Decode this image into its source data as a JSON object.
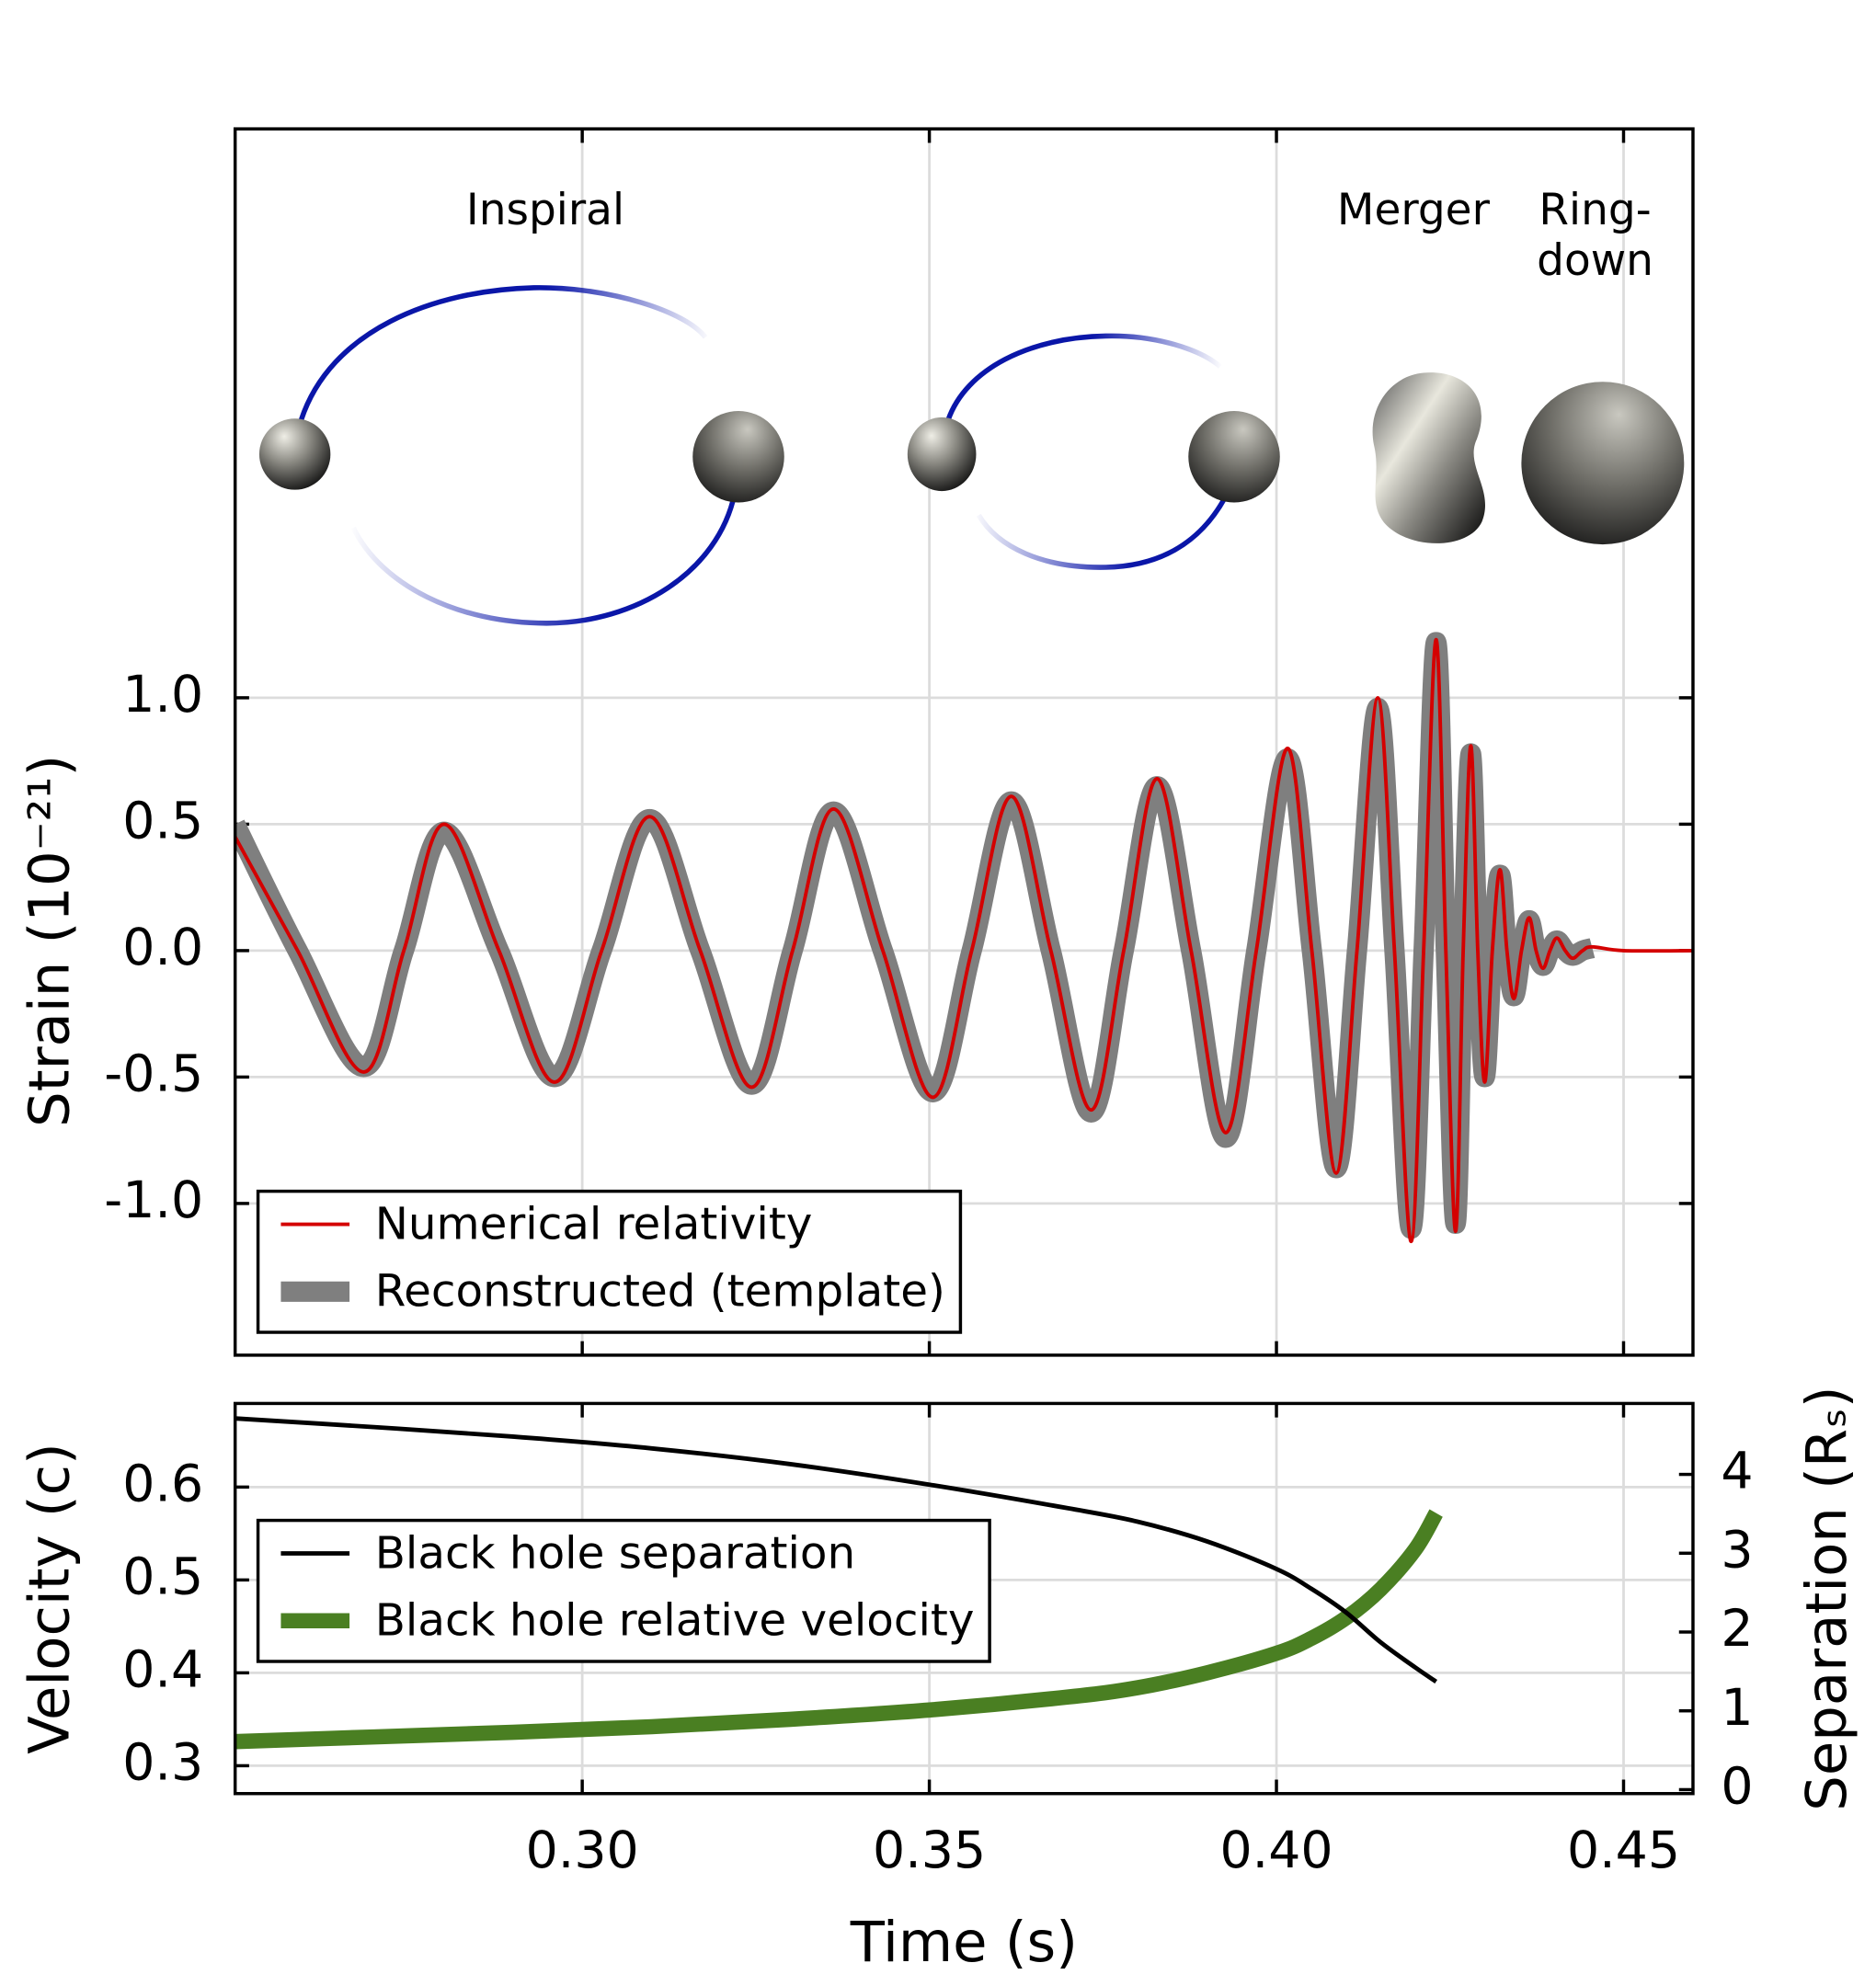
{
  "chart_data": [
    {
      "type": "line",
      "ylabel": "Strain (10⁻²¹)",
      "annotations": [
        "Inspiral",
        "Merger",
        [
          "Ring-",
          "down"
        ]
      ],
      "xlim": [
        0.25,
        0.46
      ],
      "ylim": [
        -1.6,
        3.25
      ],
      "yticks": [
        {
          "value": 1,
          "label": "1.0"
        },
        0.5,
        {
          "value": 0,
          "label": "0.0"
        },
        -0.5,
        {
          "value": -1,
          "label": "-1.0"
        }
      ],
      "grid": true,
      "legend": "lower left",
      "x": [
        0.25,
        0.259,
        0.2685,
        0.2743,
        0.2801,
        0.288,
        0.296,
        0.3028,
        0.3097,
        0.317,
        0.3244,
        0.3303,
        0.3362,
        0.3433,
        0.3505,
        0.3561,
        0.3618,
        0.3675,
        0.3733,
        0.378,
        0.3828,
        0.3877,
        0.3927,
        0.3971,
        0.4016,
        0.4051,
        0.4086,
        0.4116,
        0.4146,
        0.417,
        0.4194,
        0.4212,
        0.423,
        0.4244,
        0.4258,
        0.4269,
        0.428,
        0.429,
        0.43,
        0.4311,
        0.4322,
        0.4332,
        0.4342,
        0.4353,
        0.4364,
        0.4374,
        0.4384,
        0.4394,
        0.4404,
        0.4416,
        0.4427,
        0.4441,
        0.4455,
        0.45,
        0.46
      ],
      "series": [
        {
          "name": "Numerical relativity",
          "color": "#d40000",
          "linewidth": 2.8,
          "values": [
            0.45,
            0,
            -0.48,
            0,
            0.5,
            0,
            -0.52,
            0,
            0.53,
            0,
            -0.54,
            0,
            0.56,
            0,
            -0.58,
            0,
            0.61,
            0,
            -0.63,
            0,
            0.68,
            0,
            -0.72,
            0,
            0.8,
            0,
            -0.88,
            0,
            1.0,
            0,
            -1.15,
            0,
            1.23,
            0,
            -1.11,
            0,
            0.81,
            0,
            -0.52,
            0,
            0.32,
            0,
            -0.19,
            0,
            0.13,
            0,
            -0.07,
            0,
            0.05,
            0,
            -0.03,
            0,
            0.015,
            0,
            0
          ]
        },
        {
          "name": "Reconstructed (template)",
          "color": "#7f7f7f",
          "linewidth": 16,
          "values": [
            0.5,
            0,
            -0.46,
            0,
            0.47,
            0,
            -0.5,
            0,
            0.52,
            0,
            -0.53,
            0,
            0.55,
            0,
            -0.56,
            0,
            0.59,
            0,
            -0.64,
            0,
            0.65,
            0,
            -0.74,
            0,
            0.76,
            0,
            -0.86,
            0,
            0.96,
            0,
            -1.1,
            0,
            1.22,
            0,
            -1.08,
            0,
            0.78,
            0,
            -0.5,
            0,
            0.3,
            0,
            -0.18,
            0,
            0.12,
            0,
            -0.06,
            0,
            0.04,
            0,
            -0.02,
            0,
            0.01,
            null,
            null
          ]
        }
      ]
    },
    {
      "type": "line",
      "xlabel": "Time (s)",
      "ylabel": "Velocity (c)",
      "y2label": "Separation (Rₛ)",
      "xlim": [
        0.25,
        0.46
      ],
      "ylim": [
        0.27,
        0.69
      ],
      "y2lim": [
        -0.05,
        4.9
      ],
      "xticks": [
        {
          "value": 0.3,
          "label": "0.30"
        },
        0.35,
        {
          "value": 0.4,
          "label": "0.40"
        },
        0.45
      ],
      "yticks": [
        0.6,
        0.5,
        0.4,
        0.3
      ],
      "y2ticks": [
        4,
        3,
        2,
        1,
        0
      ],
      "grid": true,
      "legend": "center left",
      "x": [
        0.25,
        0.27,
        0.29,
        0.31,
        0.33,
        0.35,
        0.37,
        0.38,
        0.39,
        0.4,
        0.405,
        0.41,
        0.415,
        0.42,
        0.423
      ],
      "series": [
        {
          "name": "Black hole separation",
          "color": "#000000",
          "linewidth": 3.5,
          "axis": "y2",
          "values": [
            4.71,
            4.6,
            4.48,
            4.33,
            4.13,
            3.87,
            3.57,
            3.4,
            3.15,
            2.8,
            2.55,
            2.25,
            1.87,
            1.55,
            1.37
          ]
        },
        {
          "name": "Black hole relative velocity",
          "color": "#4a7f22",
          "linewidth": 12,
          "values": [
            0.326,
            0.331,
            0.336,
            0.342,
            0.35,
            0.36,
            0.374,
            0.384,
            0.4,
            0.421,
            0.437,
            0.459,
            0.49,
            0.533,
            0.572
          ]
        }
      ]
    }
  ]
}
